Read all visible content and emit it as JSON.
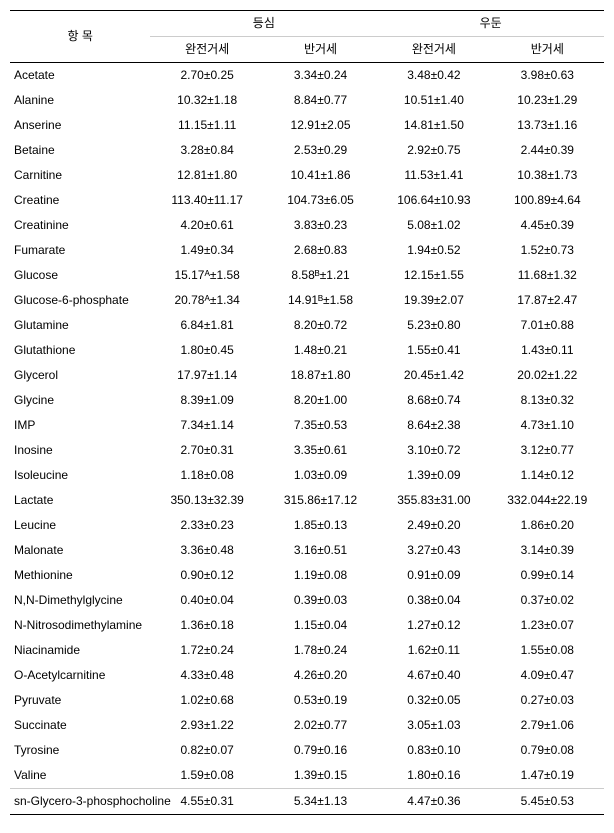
{
  "headers": {
    "item": "항 목",
    "group1": "등심",
    "group2": "우둔",
    "sub1": "완전거세",
    "sub2": "반거세",
    "sub3": "완전거세",
    "sub4": "반거세"
  },
  "rows": [
    {
      "name": "Acetate",
      "v": [
        "2.70±0.25",
        "3.34±0.24",
        "3.48±0.42",
        "3.98±0.63"
      ]
    },
    {
      "name": "Alanine",
      "v": [
        "10.32±1.18",
        "8.84±0.77",
        "10.51±1.40",
        "10.23±1.29"
      ]
    },
    {
      "name": "Anserine",
      "v": [
        "11.15±1.11",
        "12.91±2.05",
        "14.81±1.50",
        "13.73±1.16"
      ]
    },
    {
      "name": "Betaine",
      "v": [
        "3.28±0.84",
        "2.53±0.29",
        "2.92±0.75",
        "2.44±0.39"
      ]
    },
    {
      "name": "Carnitine",
      "v": [
        "12.81±1.80",
        "10.41±1.86",
        "11.53±1.41",
        "10.38±1.73"
      ]
    },
    {
      "name": "Creatine",
      "v": [
        "113.40±11.17",
        "104.73±6.05",
        "106.64±10.93",
        "100.89±4.64"
      ]
    },
    {
      "name": "Creatinine",
      "v": [
        "4.20±0.61",
        "3.83±0.23",
        "5.08±1.02",
        "4.45±0.39"
      ]
    },
    {
      "name": "Fumarate",
      "v": [
        "1.49±0.34",
        "2.68±0.83",
        "1.94±0.52",
        "1.52±0.73"
      ]
    },
    {
      "name": "Glucose",
      "v": [
        "15.17ᴬ±1.58",
        "8.58ᴮ±1.21",
        "12.15±1.55",
        "11.68±1.32"
      ]
    },
    {
      "name": "Glucose-6-phosphate",
      "v": [
        "20.78ᴬ±1.34",
        "14.91ᴮ±1.58",
        "19.39±2.07",
        "17.87±2.47"
      ]
    },
    {
      "name": "Glutamine",
      "v": [
        "6.84±1.81",
        "8.20±0.72",
        "5.23±0.80",
        "7.01±0.88"
      ]
    },
    {
      "name": "Glutathione",
      "v": [
        "1.80±0.45",
        "1.48±0.21",
        "1.55±0.41",
        "1.43±0.11"
      ]
    },
    {
      "name": "Glycerol",
      "v": [
        "17.97±1.14",
        "18.87±1.80",
        "20.45±1.42",
        "20.02±1.22"
      ]
    },
    {
      "name": "Glycine",
      "v": [
        "8.39±1.09",
        "8.20±1.00",
        "8.68±0.74",
        "8.13±0.32"
      ]
    },
    {
      "name": "IMP",
      "v": [
        "7.34±1.14",
        "7.35±0.53",
        "8.64±2.38",
        "4.73±1.10"
      ]
    },
    {
      "name": "Inosine",
      "v": [
        "2.70±0.31",
        "3.35±0.61",
        "3.10±0.72",
        "3.12±0.77"
      ]
    },
    {
      "name": "Isoleucine",
      "v": [
        "1.18±0.08",
        "1.03±0.09",
        "1.39±0.09",
        "1.14±0.12"
      ]
    },
    {
      "name": "Lactate",
      "v": [
        "350.13±32.39",
        "315.86±17.12",
        "355.83±31.00",
        "332.044±22.19"
      ]
    },
    {
      "name": "Leucine",
      "v": [
        "2.33±0.23",
        "1.85±0.13",
        "2.49±0.20",
        "1.86±0.20"
      ]
    },
    {
      "name": "Malonate",
      "v": [
        "3.36±0.48",
        "3.16±0.51",
        "3.27±0.43",
        "3.14±0.39"
      ]
    },
    {
      "name": "Methionine",
      "v": [
        "0.90±0.12",
        "1.19±0.08",
        "0.91±0.09",
        "0.99±0.14"
      ]
    },
    {
      "name": "N,N-Dimethylglycine",
      "v": [
        "0.40±0.04",
        "0.39±0.03",
        "0.38±0.04",
        "0.37±0.02"
      ]
    },
    {
      "name": "N-Nitrosodimethylamine",
      "v": [
        "1.36±0.18",
        "1.15±0.04",
        "1.27±0.12",
        "1.23±0.07"
      ]
    },
    {
      "name": "Niacinamide",
      "v": [
        "1.72±0.24",
        "1.78±0.24",
        "1.62±0.11",
        "1.55±0.08"
      ]
    },
    {
      "name": "O-Acetylcarnitine",
      "v": [
        "4.33±0.48",
        "4.26±0.20",
        "4.67±0.40",
        "4.09±0.47"
      ]
    },
    {
      "name": "Pyruvate",
      "v": [
        "1.02±0.68",
        "0.53±0.19",
        "0.32±0.05",
        "0.27±0.03"
      ]
    },
    {
      "name": "Succinate",
      "v": [
        "2.93±1.22",
        "2.02±0.77",
        "3.05±1.03",
        "2.79±1.06"
      ]
    },
    {
      "name": "Tyrosine",
      "v": [
        "0.82±0.07",
        "0.79±0.16",
        "0.83±0.10",
        "0.79±0.08"
      ]
    },
    {
      "name": "Valine",
      "v": [
        "1.59±0.08",
        "1.39±0.15",
        "1.80±0.16",
        "1.47±0.19"
      ]
    },
    {
      "name": "sn-Glycero-3-phosphocholine",
      "sep": true,
      "v": [
        "4.55±0.31",
        "5.34±1.13",
        "4.47±0.36",
        "5.45±0.53"
      ]
    }
  ]
}
